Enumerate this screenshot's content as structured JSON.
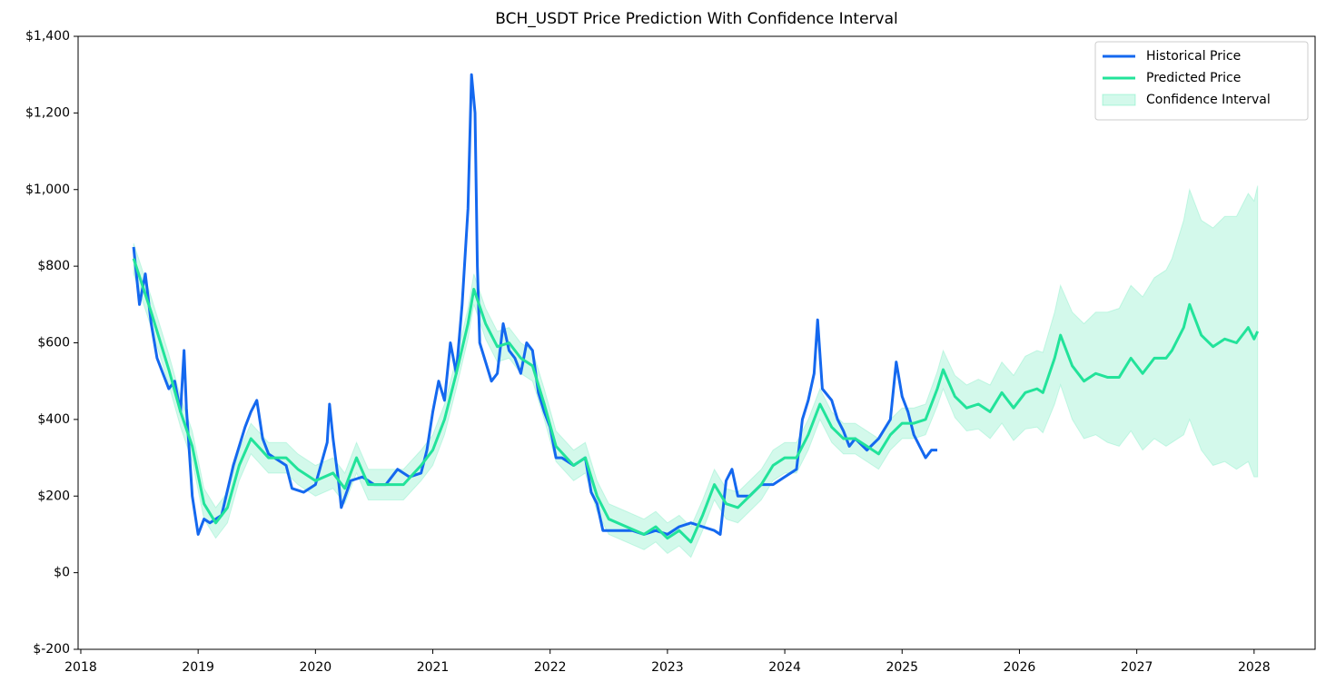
{
  "chart_data": {
    "type": "line",
    "title": "BCH_USDT Price Prediction With Confidence Interval",
    "xlim": [
      2017.977,
      2028.52
    ],
    "xticks": [
      2018,
      2019,
      2020,
      2021,
      2022,
      2023,
      2024,
      2025,
      2026,
      2027,
      2028
    ],
    "ylim": [
      -200,
      1400
    ],
    "yticks": [
      {
        "value": -200,
        "label": "$-200"
      },
      {
        "value": 0,
        "label": "$0"
      },
      {
        "value": 200,
        "label": "$200"
      },
      {
        "value": 400,
        "label": "$400"
      },
      {
        "value": 600,
        "label": "$600"
      },
      {
        "value": 800,
        "label": "$800"
      },
      {
        "value": 1000,
        "label": "$1,000"
      },
      {
        "value": 1200,
        "label": "$1,200"
      },
      {
        "value": 1400,
        "label": "$1,400"
      }
    ],
    "legend": "upper right",
    "series": [
      {
        "name": "Historical Price",
        "color": "#1468ef",
        "x": [
          2018.45,
          2018.5,
          2018.55,
          2018.6,
          2018.65,
          2018.7,
          2018.75,
          2018.8,
          2018.85,
          2018.88,
          2018.9,
          2018.95,
          2019.0,
          2019.05,
          2019.1,
          2019.2,
          2019.3,
          2019.4,
          2019.45,
          2019.5,
          2019.55,
          2019.6,
          2019.7,
          2019.75,
          2019.8,
          2019.9,
          2020.0,
          2020.1,
          2020.12,
          2020.15,
          2020.2,
          2020.22,
          2020.3,
          2020.4,
          2020.5,
          2020.6,
          2020.7,
          2020.8,
          2020.9,
          2020.95,
          2021.0,
          2021.05,
          2021.1,
          2021.15,
          2021.2,
          2021.25,
          2021.3,
          2021.33,
          2021.36,
          2021.38,
          2021.4,
          2021.45,
          2021.5,
          2021.55,
          2021.6,
          2021.65,
          2021.7,
          2021.75,
          2021.8,
          2021.85,
          2021.9,
          2021.95,
          2022.0,
          2022.05,
          2022.1,
          2022.2,
          2022.3,
          2022.35,
          2022.4,
          2022.45,
          2022.55,
          2022.7,
          2022.8,
          2022.9,
          2023.0,
          2023.1,
          2023.2,
          2023.3,
          2023.4,
          2023.45,
          2023.5,
          2023.55,
          2023.6,
          2023.7,
          2023.8,
          2023.9,
          2024.0,
          2024.1,
          2024.15,
          2024.2,
          2024.25,
          2024.28,
          2024.32,
          2024.4,
          2024.45,
          2024.5,
          2024.55,
          2024.6,
          2024.7,
          2024.8,
          2024.9,
          2024.95,
          2025.0,
          2025.05,
          2025.1,
          2025.15,
          2025.2,
          2025.25,
          2025.3
        ],
        "values": [
          850,
          700,
          780,
          650,
          560,
          520,
          480,
          500,
          420,
          580,
          430,
          200,
          100,
          140,
          130,
          150,
          280,
          380,
          420,
          450,
          350,
          310,
          290,
          280,
          220,
          210,
          230,
          340,
          440,
          350,
          230,
          170,
          240,
          250,
          230,
          230,
          270,
          250,
          260,
          320,
          420,
          500,
          450,
          600,
          520,
          700,
          950,
          1300,
          1200,
          800,
          600,
          550,
          500,
          520,
          650,
          580,
          560,
          520,
          600,
          580,
          470,
          420,
          380,
          300,
          300,
          280,
          300,
          210,
          180,
          110,
          110,
          110,
          100,
          110,
          100,
          120,
          130,
          120,
          110,
          100,
          240,
          270,
          200,
          200,
          230,
          230,
          250,
          270,
          400,
          450,
          520,
          660,
          480,
          450,
          400,
          370,
          330,
          350,
          320,
          350,
          400,
          550,
          460,
          420,
          360,
          330,
          300,
          320,
          320
        ]
      },
      {
        "name": "Predicted Price",
        "color": "#22e39a",
        "x": [
          2018.45,
          2018.6,
          2018.75,
          2018.85,
          2018.95,
          2019.05,
          2019.15,
          2019.25,
          2019.35,
          2019.45,
          2019.6,
          2019.75,
          2019.85,
          2020.0,
          2020.15,
          2020.25,
          2020.35,
          2020.45,
          2020.6,
          2020.75,
          2020.9,
          2021.0,
          2021.1,
          2021.2,
          2021.3,
          2021.35,
          2021.45,
          2021.55,
          2021.65,
          2021.75,
          2021.85,
          2021.95,
          2022.05,
          2022.2,
          2022.3,
          2022.4,
          2022.5,
          2022.65,
          2022.8,
          2022.9,
          2023.0,
          2023.1,
          2023.2,
          2023.3,
          2023.4,
          2023.5,
          2023.6,
          2023.7,
          2023.8,
          2023.9,
          2024.0,
          2024.1,
          2024.2,
          2024.3,
          2024.4,
          2024.5,
          2024.6,
          2024.7,
          2024.8,
          2024.9,
          2025.0,
          2025.1,
          2025.2,
          2025.3,
          2025.35,
          2025.45,
          2025.55,
          2025.65,
          2025.75,
          2025.85,
          2025.95,
          2026.05,
          2026.15,
          2026.2,
          2026.3,
          2026.35,
          2026.45,
          2026.55,
          2026.65,
          2026.75,
          2026.85,
          2026.95,
          2027.05,
          2027.15,
          2027.25,
          2027.3,
          2027.4,
          2027.45,
          2027.55,
          2027.65,
          2027.75,
          2027.85,
          2027.95,
          2028.0,
          2028.03
        ],
        "values": [
          820,
          680,
          530,
          420,
          330,
          180,
          130,
          170,
          280,
          350,
          300,
          300,
          270,
          240,
          260,
          220,
          300,
          230,
          230,
          230,
          280,
          320,
          400,
          520,
          650,
          740,
          650,
          590,
          600,
          560,
          540,
          440,
          330,
          280,
          300,
          200,
          140,
          120,
          100,
          120,
          90,
          110,
          80,
          150,
          230,
          180,
          170,
          200,
          230,
          280,
          300,
          300,
          360,
          440,
          380,
          350,
          350,
          330,
          310,
          360,
          390,
          390,
          400,
          480,
          530,
          460,
          430,
          440,
          420,
          470,
          430,
          470,
          480,
          470,
          560,
          620,
          540,
          500,
          520,
          510,
          510,
          560,
          520,
          560,
          560,
          580,
          640,
          700,
          620,
          590,
          610,
          600,
          640,
          610,
          630
        ]
      },
      {
        "name": "Confidence Interval",
        "color": "#22e39a",
        "x": [
          2018.45,
          2018.6,
          2018.75,
          2018.85,
          2018.95,
          2019.05,
          2019.15,
          2019.25,
          2019.35,
          2019.45,
          2019.6,
          2019.75,
          2019.85,
          2020.0,
          2020.15,
          2020.25,
          2020.35,
          2020.45,
          2020.6,
          2020.75,
          2020.9,
          2021.0,
          2021.1,
          2021.2,
          2021.3,
          2021.35,
          2021.45,
          2021.55,
          2021.65,
          2021.75,
          2021.85,
          2021.95,
          2022.05,
          2022.2,
          2022.3,
          2022.4,
          2022.5,
          2022.65,
          2022.8,
          2022.9,
          2023.0,
          2023.1,
          2023.2,
          2023.3,
          2023.4,
          2023.5,
          2023.6,
          2023.7,
          2023.8,
          2023.9,
          2024.0,
          2024.1,
          2024.2,
          2024.3,
          2024.4,
          2024.5,
          2024.6,
          2024.7,
          2024.8,
          2024.9,
          2025.0,
          2025.1,
          2025.2,
          2025.3,
          2025.35,
          2025.45,
          2025.55,
          2025.65,
          2025.75,
          2025.85,
          2025.95,
          2026.05,
          2026.15,
          2026.2,
          2026.3,
          2026.35,
          2026.45,
          2026.55,
          2026.65,
          2026.75,
          2026.85,
          2026.95,
          2027.05,
          2027.15,
          2027.25,
          2027.3,
          2027.4,
          2027.45,
          2027.55,
          2027.65,
          2027.75,
          2027.85,
          2027.95,
          2028.0,
          2028.03
        ],
        "upper": [
          860,
          720,
          570,
          460,
          370,
          220,
          170,
          210,
          320,
          390,
          340,
          340,
          310,
          280,
          300,
          260,
          340,
          270,
          270,
          270,
          320,
          360,
          440,
          560,
          690,
          780,
          690,
          630,
          640,
          600,
          580,
          480,
          370,
          320,
          340,
          240,
          180,
          160,
          140,
          160,
          130,
          150,
          120,
          190,
          270,
          220,
          210,
          240,
          270,
          320,
          340,
          340,
          400,
          480,
          420,
          390,
          390,
          370,
          350,
          400,
          430,
          430,
          440,
          525,
          580,
          515,
          490,
          505,
          490,
          550,
          515,
          565,
          580,
          575,
          680,
          750,
          680,
          650,
          680,
          680,
          690,
          750,
          720,
          770,
          790,
          820,
          920,
          1000,
          920,
          900,
          930,
          930,
          990,
          970,
          1010
        ],
        "lower": [
          780,
          640,
          490,
          380,
          290,
          140,
          90,
          130,
          240,
          310,
          260,
          260,
          230,
          200,
          220,
          180,
          260,
          190,
          190,
          190,
          240,
          280,
          360,
          480,
          610,
          700,
          610,
          550,
          560,
          520,
          500,
          400,
          290,
          240,
          260,
          160,
          100,
          80,
          60,
          80,
          50,
          70,
          40,
          110,
          190,
          140,
          130,
          160,
          190,
          240,
          260,
          260,
          320,
          400,
          340,
          310,
          310,
          290,
          270,
          320,
          350,
          350,
          360,
          435,
          480,
          405,
          370,
          375,
          350,
          390,
          345,
          375,
          380,
          365,
          440,
          490,
          400,
          350,
          360,
          340,
          330,
          370,
          320,
          350,
          330,
          340,
          360,
          400,
          320,
          280,
          290,
          270,
          290,
          250,
          250
        ]
      }
    ]
  }
}
